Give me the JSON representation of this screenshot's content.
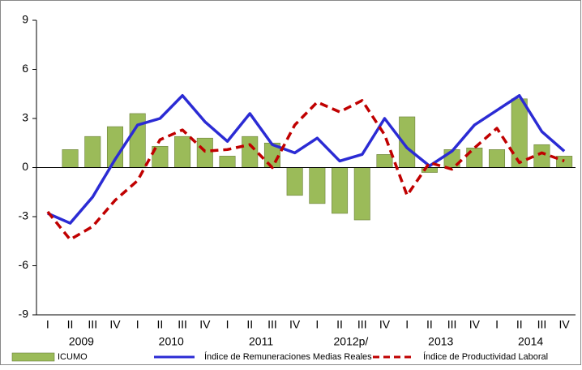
{
  "chart_data": {
    "type": "bar-line",
    "categories": [
      "I",
      "II",
      "III",
      "IV",
      "I",
      "II",
      "III",
      "IV",
      "I",
      "II",
      "III",
      "IV",
      "I",
      "II",
      "III",
      "IV",
      "I",
      "II",
      "III",
      "IV",
      "I",
      "II",
      "III",
      "IV"
    ],
    "year_groups": [
      "2009",
      "2010",
      "2011",
      "2012p/",
      "2013",
      "2014"
    ],
    "series": [
      {
        "name": "ICUMO",
        "kind": "bar",
        "color": "#9bbb59",
        "values": [
          0,
          1.1,
          1.9,
          2.5,
          3.3,
          1.3,
          1.9,
          1.8,
          0.7,
          1.9,
          1.5,
          -1.7,
          -2.2,
          -2.8,
          -3.2,
          0.8,
          3.1,
          -0.3,
          1.1,
          1.2,
          1.1,
          4.2,
          1.4,
          0.7
        ]
      },
      {
        "name": "Índice de Remuneraciones Medias Reales",
        "kind": "line",
        "color": "#2b2bd4",
        "values": [
          -2.8,
          -3.4,
          -1.8,
          0.5,
          2.6,
          3.0,
          4.4,
          2.8,
          1.6,
          3.3,
          1.4,
          0.9,
          1.8,
          0.4,
          0.8,
          3.0,
          1.2,
          0.1,
          1.0,
          2.6,
          3.5,
          4.4,
          2.2,
          1.0
        ]
      },
      {
        "name": "Índice de Productividad Laboral",
        "kind": "dashed",
        "color": "#c00000",
        "values": [
          -2.7,
          -4.4,
          -3.6,
          -2.0,
          -0.8,
          1.7,
          2.3,
          1.0,
          1.1,
          1.4,
          0.0,
          2.6,
          4.0,
          3.4,
          4.1,
          2.0,
          -1.7,
          0.3,
          -0.1,
          1.2,
          2.4,
          0.3,
          0.9,
          0.4
        ]
      }
    ],
    "ylim": [
      -9,
      9
    ],
    "yticks": [
      -9,
      -6,
      -3,
      0,
      3,
      6,
      9
    ]
  }
}
